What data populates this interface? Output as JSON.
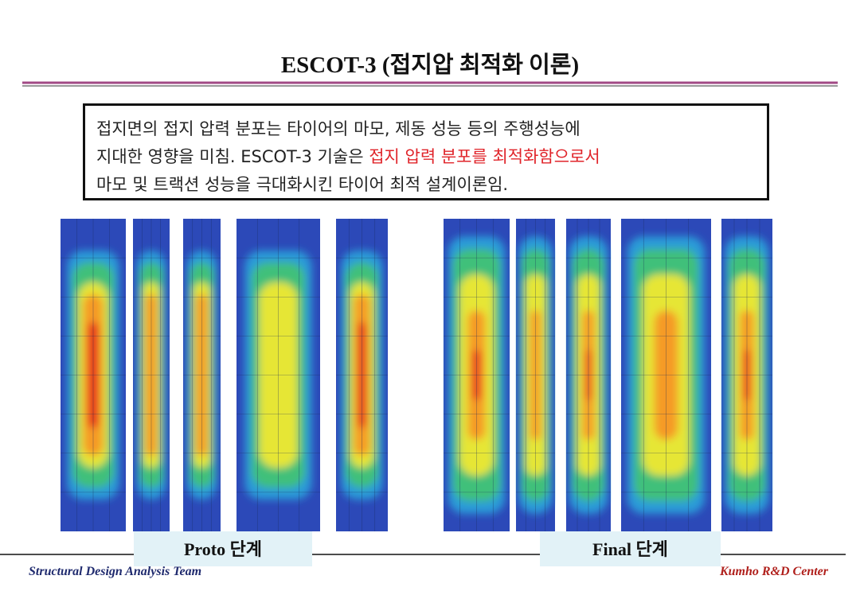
{
  "header": {
    "title": "ESCOT-3 (접지압 최적화 이론)"
  },
  "description": {
    "line_1": "접지면의 접지 압력 분포는 타이어의 마모, 제동 성능 등의 주행성능에",
    "line_2": "지대한 영향을 미침. ESCOT-3 기술은 ",
    "highlight": "접지 압력 분포를 최적화함으로서",
    "line_3": "마모 및 트랙션 성능을 극대화시킨 타이어 최적 설계이론임."
  },
  "figures": {
    "proto_label": "Proto 단계",
    "final_label": "Final 단계"
  },
  "footer": {
    "left": "Structural Design Analysis Team",
    "right": "Kumho R&D Center"
  }
}
